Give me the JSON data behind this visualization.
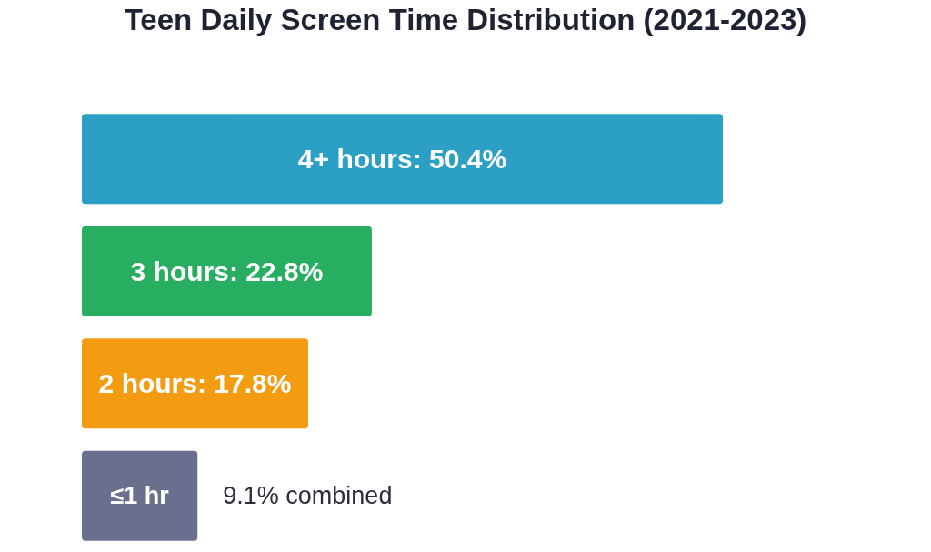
{
  "chart_data": {
    "type": "bar",
    "orientation": "horizontal",
    "title": "Teen Daily Screen Time Distribution (2021-2023)",
    "categories": [
      null,
      null,
      null,
      "≤1 hr"
    ],
    "values": [
      50.4,
      22.8,
      17.8,
      9.1
    ],
    "colors": [
      "#2b9fc4",
      "#27ae60",
      "#f39c12",
      "#6b6f8e"
    ],
    "value_labels": [
      "4+ hours: 50.4%",
      "3 hours: 22.8%",
      "2 hours: 17.8%",
      "9.1% combined"
    ],
    "grid": false,
    "legend": false
  }
}
